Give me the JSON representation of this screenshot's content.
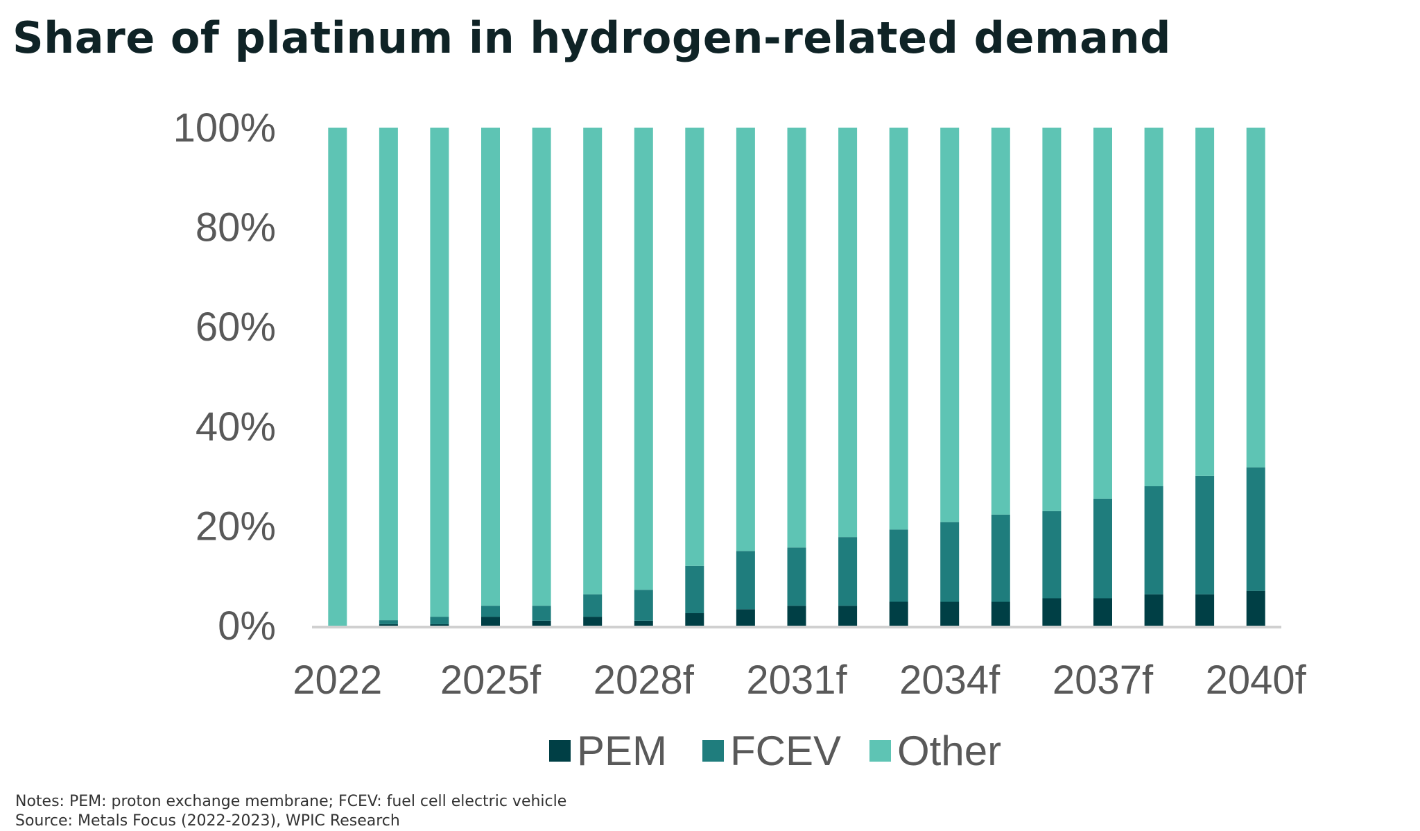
{
  "title": "Share of platinum in hydrogen-related demand",
  "notes": "Notes: PEM:  proton exchange membrane; FCEV: fuel cell electric vehicle",
  "source": "Source: Metals Focus (2022-2023), WPIC Research",
  "chart_data": {
    "type": "bar",
    "stacked": true,
    "categories": [
      "2022",
      "2023f",
      "2024f",
      "2025f",
      "2026f",
      "2027f",
      "2028f",
      "2029f",
      "2030f",
      "2031f",
      "2032f",
      "2033f",
      "2034f",
      "2035f",
      "2036f",
      "2037f",
      "2038f",
      "2039f",
      "2040f"
    ],
    "tick_labels": [
      "2022",
      "",
      "",
      "2025f",
      "",
      "",
      "2028f",
      "",
      "",
      "2031f",
      "",
      "",
      "2034f",
      "",
      "",
      "2037f",
      "",
      "",
      "2040f"
    ],
    "y_ticks": [
      "0%",
      "20%",
      "40%",
      "60%",
      "80%",
      "100%"
    ],
    "ylim": [
      0,
      100
    ],
    "series": [
      {
        "name": "PEM",
        "color": "#003f45",
        "values": [
          0,
          0.3,
          0.3,
          1.8,
          1,
          1.8,
          1,
          2.5,
          3.3,
          4,
          4,
          4.8,
          4.8,
          4.8,
          5.5,
          5.5,
          6.3,
          6.3,
          7
        ]
      },
      {
        "name": "FCEV",
        "color": "#1f7d7d",
        "values": [
          0,
          0.8,
          1.5,
          2.2,
          3,
          4.5,
          6.2,
          9.5,
          11.7,
          11.7,
          13.8,
          14.5,
          16,
          17.5,
          17.5,
          20,
          21.7,
          23.8,
          24.8
        ]
      },
      {
        "name": "Other",
        "color": "#5ec4b4",
        "values": [
          100,
          98.9,
          98.2,
          96,
          96,
          93.7,
          92.8,
          88,
          85,
          84.3,
          82.2,
          80.7,
          79.2,
          77.7,
          77,
          74.5,
          72,
          69.9,
          68.2
        ]
      }
    ],
    "legend_position": "bottom",
    "grid": false
  }
}
